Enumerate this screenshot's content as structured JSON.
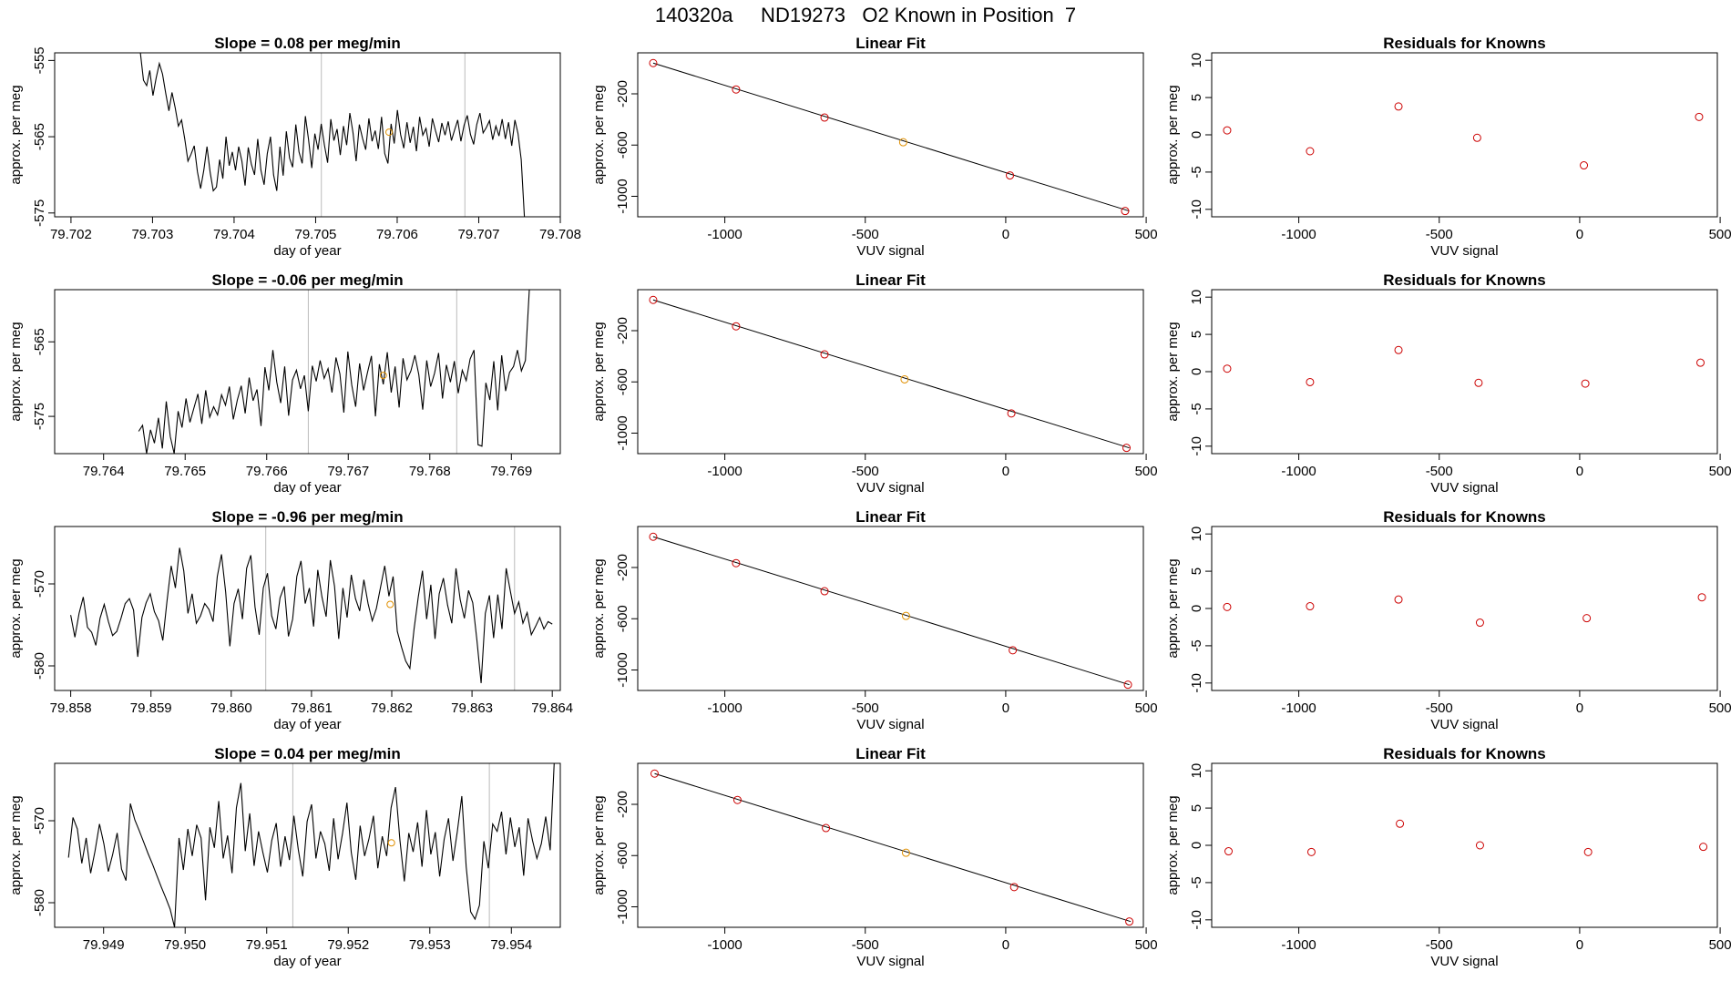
{
  "page": {
    "title": "140320a     ND19273   O2 Known in Position  7"
  },
  "colors": {
    "trace": "#000000",
    "marker": "#e09000",
    "known_points": "#cc0000",
    "gridline": "#bbbbbb",
    "axis": "#000000"
  },
  "chart_data": [
    {
      "type": "line",
      "title": "Slope =  0.08  per meg/min",
      "xlabel": "day of year",
      "ylabel": "approx. per meg",
      "xlim": [
        79.7018,
        79.708
      ],
      "ylim": [
        -575.5,
        -554
      ],
      "xticks": [
        "79.702",
        "79.703",
        "79.704",
        "79.705",
        "79.706",
        "79.707",
        "79.708"
      ],
      "xtick_values": [
        79.702,
        79.703,
        79.704,
        79.705,
        79.706,
        79.707,
        79.708
      ],
      "yticks": [
        "-555",
        "-565",
        "-575"
      ],
      "ytick_values": [
        -555,
        -565,
        -575
      ],
      "vlines": [
        79.70507,
        79.70683
      ],
      "marker": {
        "x": 79.7059,
        "y": -564.4
      },
      "series_start": 79.70285,
      "series_end": 79.70756,
      "series": [
        -553.9,
        -557.6,
        -558.3,
        -556.3,
        -559.6,
        -557.3,
        -555.4,
        -556.8,
        -559.3,
        -561.6,
        -559.2,
        -561.2,
        -563.6,
        -562.8,
        -565.3,
        -568.2,
        -567.3,
        -566.2,
        -569.6,
        -571.8,
        -569.4,
        -566.3,
        -569.7,
        -572.1,
        -571.6,
        -568.0,
        -570.5,
        -565.0,
        -568.8,
        -567.0,
        -569.4,
        -566.3,
        -568.2,
        -571.4,
        -566.4,
        -568.6,
        -570.0,
        -565.3,
        -569.4,
        -571.3,
        -567.2,
        -565.0,
        -570.0,
        -572.1,
        -566.3,
        -570.1,
        -564.3,
        -567.8,
        -569.0,
        -563.4,
        -567.0,
        -568.5,
        -562.3,
        -565.4,
        -569.1,
        -564.6,
        -566.7,
        -563.3,
        -566.1,
        -568.4,
        -562.7,
        -565.5,
        -564.0,
        -567.4,
        -563.6,
        -566.1,
        -561.9,
        -564.5,
        -568.2,
        -563.4,
        -565.2,
        -566.7,
        -562.6,
        -565.6,
        -564.2,
        -566.6,
        -562.4,
        -567.2,
        -568.5,
        -563.3,
        -565.9,
        -561.5,
        -564.7,
        -566.5,
        -563.1,
        -565.8,
        -563.7,
        -566.9,
        -562.4,
        -564.8,
        -563.9,
        -566.3,
        -562.6,
        -564.2,
        -565.7,
        -563.2,
        -564.8,
        -563.0,
        -565.5,
        -564.1,
        -562.8,
        -565.6,
        -563.5,
        -562.2,
        -564.7,
        -566.0,
        -563.4,
        -561.9,
        -564.5,
        -563.8,
        -562.9,
        -565.4,
        -563.6,
        -564.9,
        -562.7,
        -565.3,
        -563.1,
        -566.2,
        -562.8,
        -564.6,
        -568.0,
        -575.5
      ]
    },
    {
      "type": "scatter",
      "title": "Linear Fit",
      "xlabel": "VUV signal",
      "ylabel": "approx. per meg",
      "xlim": [
        -1310,
        490
      ],
      "ylim": [
        -1160,
        120
      ],
      "xticks": [
        "-1000",
        "-500",
        "0",
        "500"
      ],
      "xtick_values": [
        -1000,
        -500,
        0,
        500
      ],
      "yticks": [
        "-200",
        "-600",
        "-1000"
      ],
      "ytick_values": [
        -200,
        -600,
        -1000
      ],
      "fit_line": {
        "x": [
          -1255,
          440
        ],
        "y": [
          40,
          -1115
        ]
      },
      "points": {
        "x": [
          -1255,
          -960,
          -645,
          -365,
          15,
          425
        ],
        "y": [
          40,
          -166,
          -385,
          -578,
          -837,
          -1115
        ]
      },
      "known_index": 3
    },
    {
      "type": "scatter",
      "title": "Residuals for Knowns",
      "xlabel": "VUV signal",
      "ylabel": "approx. per meg",
      "xlim": [
        -1310,
        490
      ],
      "ylim": [
        -11,
        11
      ],
      "xticks": [
        "-1000",
        "-500",
        "0",
        "500"
      ],
      "xtick_values": [
        -1000,
        -500,
        0,
        500
      ],
      "yticks": [
        "10",
        "5",
        "0",
        "-5",
        "-10"
      ],
      "ytick_values": [
        10,
        5,
        0,
        -5,
        -10
      ],
      "points": {
        "x": [
          -1255,
          -960,
          -645,
          -365,
          15,
          425
        ],
        "y": [
          0.6,
          -2.2,
          3.8,
          -0.4,
          -4.1,
          2.4
        ]
      }
    },
    {
      "type": "line",
      "title": "Slope =  -0.06  per meg/min",
      "xlabel": "day of year",
      "ylabel": "approx. per meg",
      "xlim": [
        79.7634,
        79.7696
      ],
      "ylim": [
        -580,
        -558
      ],
      "xticks": [
        "79.764",
        "79.765",
        "79.766",
        "79.767",
        "79.768",
        "79.769"
      ],
      "xtick_values": [
        79.764,
        79.765,
        79.766,
        79.767,
        79.768,
        79.769
      ],
      "yticks": [
        "-565",
        "-575"
      ],
      "ytick_values": [
        -565,
        -575
      ],
      "vlines": [
        79.76651,
        79.76833
      ],
      "marker": {
        "x": 79.76743,
        "y": -569.5
      },
      "series_start": 79.76443,
      "series_end": 79.76922,
      "series": [
        -577.0,
        -576.2,
        -580.0,
        -576.8,
        -578.6,
        -575.2,
        -579.3,
        -573.0,
        -577.7,
        -580.0,
        -574.3,
        -576.5,
        -572.6,
        -575.8,
        -573.9,
        -572.0,
        -576.0,
        -571.5,
        -575.1,
        -573.7,
        -574.8,
        -572.1,
        -573.5,
        -571.0,
        -575.4,
        -572.8,
        -570.9,
        -574.6,
        -569.8,
        -572.9,
        -571.4,
        -576.3,
        -568.4,
        -571.5,
        -566.1,
        -570.4,
        -573.2,
        -568.3,
        -574.9,
        -570.1,
        -568.8,
        -571.3,
        -569.5,
        -574.3,
        -568.2,
        -570.3,
        -567.5,
        -569.9,
        -568.6,
        -571.8,
        -567.1,
        -569.3,
        -574.5,
        -566.3,
        -570.8,
        -573.7,
        -567.9,
        -571.5,
        -569.1,
        -566.9,
        -575.0,
        -568.0,
        -570.7,
        -566.4,
        -571.8,
        -568.3,
        -573.8,
        -567.2,
        -570.1,
        -568.9,
        -566.8,
        -569.4,
        -574.1,
        -567.5,
        -571.0,
        -569.2,
        -566.5,
        -572.6,
        -568.1,
        -570.4,
        -567.6,
        -571.9,
        -568.8,
        -570.2,
        -567.3,
        -566.1,
        -578.8,
        -579.0,
        -570.5,
        -572.8,
        -567.6,
        -574.2,
        -566.8,
        -571.6,
        -569.1,
        -568.3,
        -566.1,
        -568.9,
        -567.5,
        -558.0
      ]
    },
    {
      "type": "scatter",
      "title": "Linear Fit",
      "xlabel": "VUV signal",
      "ylabel": "approx. per meg",
      "xlim": [
        -1310,
        490
      ],
      "ylim": [
        -1160,
        120
      ],
      "xticks": [
        "-1000",
        "-500",
        "0",
        "500"
      ],
      "xtick_values": [
        -1000,
        -500,
        0,
        500
      ],
      "yticks": [
        "-200",
        "-600",
        "-1000"
      ],
      "ytick_values": [
        -200,
        -600,
        -1000
      ],
      "fit_line": {
        "x": [
          -1255,
          440
        ],
        "y": [
          40,
          -1115
        ]
      },
      "points": {
        "x": [
          -1255,
          -960,
          -645,
          -360,
          20,
          430
        ],
        "y": [
          40,
          -166,
          -385,
          -580,
          -846,
          -1115
        ]
      },
      "known_index": 3
    },
    {
      "type": "scatter",
      "title": "Residuals for Knowns",
      "xlabel": "VUV signal",
      "ylabel": "approx. per meg",
      "xlim": [
        -1310,
        490
      ],
      "ylim": [
        -11,
        11
      ],
      "xticks": [
        "-1000",
        "-500",
        "0",
        "500"
      ],
      "xtick_values": [
        -1000,
        -500,
        0,
        500
      ],
      "yticks": [
        "10",
        "5",
        "0",
        "-5",
        "-10"
      ],
      "ytick_values": [
        10,
        5,
        0,
        -5,
        -10
      ],
      "points": {
        "x": [
          -1255,
          -960,
          -645,
          -360,
          20,
          430
        ],
        "y": [
          0.4,
          -1.4,
          2.9,
          -1.5,
          -1.6,
          1.2
        ]
      }
    },
    {
      "type": "line",
      "title": "Slope =  -0.96  per meg/min",
      "xlabel": "day of year",
      "ylabel": "approx. per meg",
      "xlim": [
        79.8578,
        79.8641
      ],
      "ylim": [
        -583,
        -563
      ],
      "xticks": [
        "79.858",
        "79.859",
        "79.860",
        "79.861",
        "79.862",
        "79.863",
        "79.864"
      ],
      "xtick_values": [
        79.858,
        79.859,
        79.86,
        79.861,
        79.862,
        79.863,
        79.864
      ],
      "yticks": [
        "-570",
        "-580"
      ],
      "ytick_values": [
        -570,
        -580
      ],
      "vlines": [
        79.86043,
        79.86353
      ],
      "marker": {
        "x": 79.86198,
        "y": -572.5
      },
      "series_start": 79.858,
      "series_end": 79.864,
      "series": [
        -573.8,
        -576.5,
        -573.6,
        -571.6,
        -575.3,
        -575.9,
        -577.5,
        -574.2,
        -572.5,
        -574.6,
        -576.3,
        -575.8,
        -574.2,
        -572.4,
        -571.8,
        -573.2,
        -578.9,
        -574.1,
        -572.3,
        -571.2,
        -573.4,
        -574.5,
        -576.9,
        -572.1,
        -567.8,
        -570.5,
        -565.6,
        -568.4,
        -573.6,
        -571.2,
        -574.8,
        -573.9,
        -572.4,
        -573.1,
        -574.6,
        -569.1,
        -566.4,
        -571.0,
        -577.6,
        -572.4,
        -570.6,
        -574.3,
        -568.1,
        -566.5,
        -572.8,
        -576.2,
        -570.5,
        -568.7,
        -573.9,
        -575.5,
        -571.7,
        -570.3,
        -576.4,
        -574.3,
        -569.1,
        -567.2,
        -572.4,
        -570.5,
        -575.2,
        -568.3,
        -571.6,
        -574.0,
        -567.1,
        -570.3,
        -576.7,
        -570.5,
        -574.1,
        -568.9,
        -571.8,
        -573.3,
        -569.5,
        -572.4,
        -574.5,
        -573.0,
        -570.4,
        -567.8,
        -571.5,
        -569.1,
        -575.8,
        -577.7,
        -579.4,
        -580.3,
        -575.5,
        -571.6,
        -568.4,
        -574.3,
        -570.1,
        -576.7,
        -571.2,
        -569.3,
        -572.6,
        -574.8,
        -568.1,
        -571.9,
        -574.2,
        -570.8,
        -572.3,
        -576.9,
        -582.1,
        -573.6,
        -571.4,
        -576.6,
        -571.3,
        -575.5,
        -568.1,
        -570.9,
        -573.6,
        -572.2,
        -574.8,
        -573.5,
        -576.2,
        -575.2,
        -574.1,
        -575.5,
        -574.6,
        -574.9
      ]
    },
    {
      "type": "scatter",
      "title": "Linear Fit",
      "xlabel": "VUV signal",
      "ylabel": "approx. per meg",
      "xlim": [
        -1310,
        490
      ],
      "ylim": [
        -1160,
        120
      ],
      "xticks": [
        "-1000",
        "-500",
        "0",
        "500"
      ],
      "xtick_values": [
        -1000,
        -500,
        0,
        500
      ],
      "yticks": [
        "-200",
        "-600",
        "-1000"
      ],
      "ytick_values": [
        -200,
        -600,
        -1000
      ],
      "fit_line": {
        "x": [
          -1255,
          440
        ],
        "y": [
          40,
          -1115
        ]
      },
      "points": {
        "x": [
          -1255,
          -960,
          -645,
          -355,
          25,
          435
        ],
        "y": [
          40,
          -166,
          -385,
          -578,
          -846,
          -1115
        ]
      },
      "known_index": 3
    },
    {
      "type": "scatter",
      "title": "Residuals for Knowns",
      "xlabel": "VUV signal",
      "ylabel": "approx. per meg",
      "xlim": [
        -1310,
        490
      ],
      "ylim": [
        -11,
        11
      ],
      "xticks": [
        "-1000",
        "-500",
        "0",
        "500"
      ],
      "xtick_values": [
        -1000,
        -500,
        0,
        500
      ],
      "yticks": [
        "10",
        "5",
        "0",
        "-5",
        "-10"
      ],
      "ytick_values": [
        10,
        5,
        0,
        -5,
        -10
      ],
      "points": {
        "x": [
          -1255,
          -960,
          -645,
          -355,
          25,
          435
        ],
        "y": [
          0.2,
          0.3,
          1.2,
          -1.9,
          -1.3,
          1.5
        ]
      }
    },
    {
      "type": "line",
      "title": "Slope =  0.04  per meg/min",
      "xlabel": "day of year",
      "ylabel": "approx. per meg",
      "xlim": [
        79.9484,
        79.9546
      ],
      "ylim": [
        -583,
        -563
      ],
      "xticks": [
        "79.949",
        "79.950",
        "79.951",
        "79.952",
        "79.953",
        "79.954"
      ],
      "xtick_values": [
        79.949,
        79.95,
        79.951,
        79.952,
        79.953,
        79.954
      ],
      "yticks": [
        "-570",
        "-580"
      ],
      "ytick_values": [
        -570,
        -580
      ],
      "vlines": [
        79.95132,
        79.95373
      ],
      "marker": {
        "x": 79.95253,
        "y": -572.7
      },
      "series_start": 79.94857,
      "series_end": 79.95453,
      "series": [
        -574.5,
        -569.6,
        -571.0,
        -575.2,
        -572.1,
        -576.4,
        -573.7,
        -570.4,
        -572.8,
        -576.2,
        -574.1,
        -571.5,
        -575.9,
        -577.3,
        -567.9,
        -569.9,
        -571.2,
        -572.6,
        -574.0,
        -575.3,
        -576.7,
        -578.1,
        -579.4,
        -580.8,
        -583.0,
        -572.1,
        -576.0,
        -571.0,
        -574.3,
        -570.5,
        -572.1,
        -579.7,
        -570.8,
        -573.3,
        -567.6,
        -574.6,
        -571.8,
        -576.4,
        -568.4,
        -565.4,
        -573.7,
        -569.1,
        -575.5,
        -571.3,
        -573.9,
        -576.3,
        -572.4,
        -570.3,
        -575.6,
        -571.9,
        -574.8,
        -569.4,
        -573.5,
        -576.8,
        -570.1,
        -568.0,
        -574.6,
        -571.3,
        -572.8,
        -576.1,
        -569.7,
        -574.7,
        -571.6,
        -567.8,
        -573.9,
        -577.2,
        -570.6,
        -574.3,
        -572.2,
        -569.4,
        -575.8,
        -571.9,
        -574.3,
        -568.4,
        -565.9,
        -572.4,
        -577.4,
        -571.5,
        -573.8,
        -570.2,
        -575.6,
        -568.7,
        -574.1,
        -571.4,
        -576.8,
        -572.3,
        -569.7,
        -574.9,
        -571.3,
        -567.0,
        -575.6,
        -581.1,
        -582.0,
        -580.3,
        -572.5,
        -575.8,
        -570.4,
        -571.3,
        -568.9,
        -574.1,
        -569.6,
        -573.2,
        -570.8,
        -576.7,
        -569.7,
        -572.4,
        -574.6,
        -572.8,
        -569.5,
        -573.6,
        -562.0
      ]
    },
    {
      "type": "scatter",
      "title": "Linear Fit",
      "xlabel": "VUV signal",
      "ylabel": "approx. per meg",
      "xlim": [
        -1310,
        490
      ],
      "ylim": [
        -1160,
        120
      ],
      "xticks": [
        "-1000",
        "-500",
        "0",
        "500"
      ],
      "xtick_values": [
        -1000,
        -500,
        0,
        500
      ],
      "yticks": [
        "-200",
        "-600",
        "-1000"
      ],
      "ytick_values": [
        -200,
        -600,
        -1000
      ],
      "fit_line": {
        "x": [
          -1250,
          445
        ],
        "y": [
          40,
          -1115
        ]
      },
      "points": {
        "x": [
          -1250,
          -955,
          -640,
          -355,
          30,
          440
        ],
        "y": [
          40,
          -166,
          -385,
          -578,
          -846,
          -1115
        ]
      },
      "known_index": 3
    },
    {
      "type": "scatter",
      "title": "Residuals for Knowns",
      "xlabel": "VUV signal",
      "ylabel": "approx. per meg",
      "xlim": [
        -1310,
        490
      ],
      "ylim": [
        -11,
        11
      ],
      "xticks": [
        "-1000",
        "-500",
        "0",
        "500"
      ],
      "xtick_values": [
        -1000,
        -500,
        0,
        500
      ],
      "yticks": [
        "10",
        "5",
        "0",
        "-5",
        "-10"
      ],
      "ytick_values": [
        10,
        5,
        0,
        -5,
        -10
      ],
      "points": {
        "x": [
          -1250,
          -955,
          -640,
          -355,
          30,
          440
        ],
        "y": [
          -0.8,
          -0.9,
          2.9,
          0.0,
          -0.9,
          -0.2
        ]
      }
    }
  ]
}
